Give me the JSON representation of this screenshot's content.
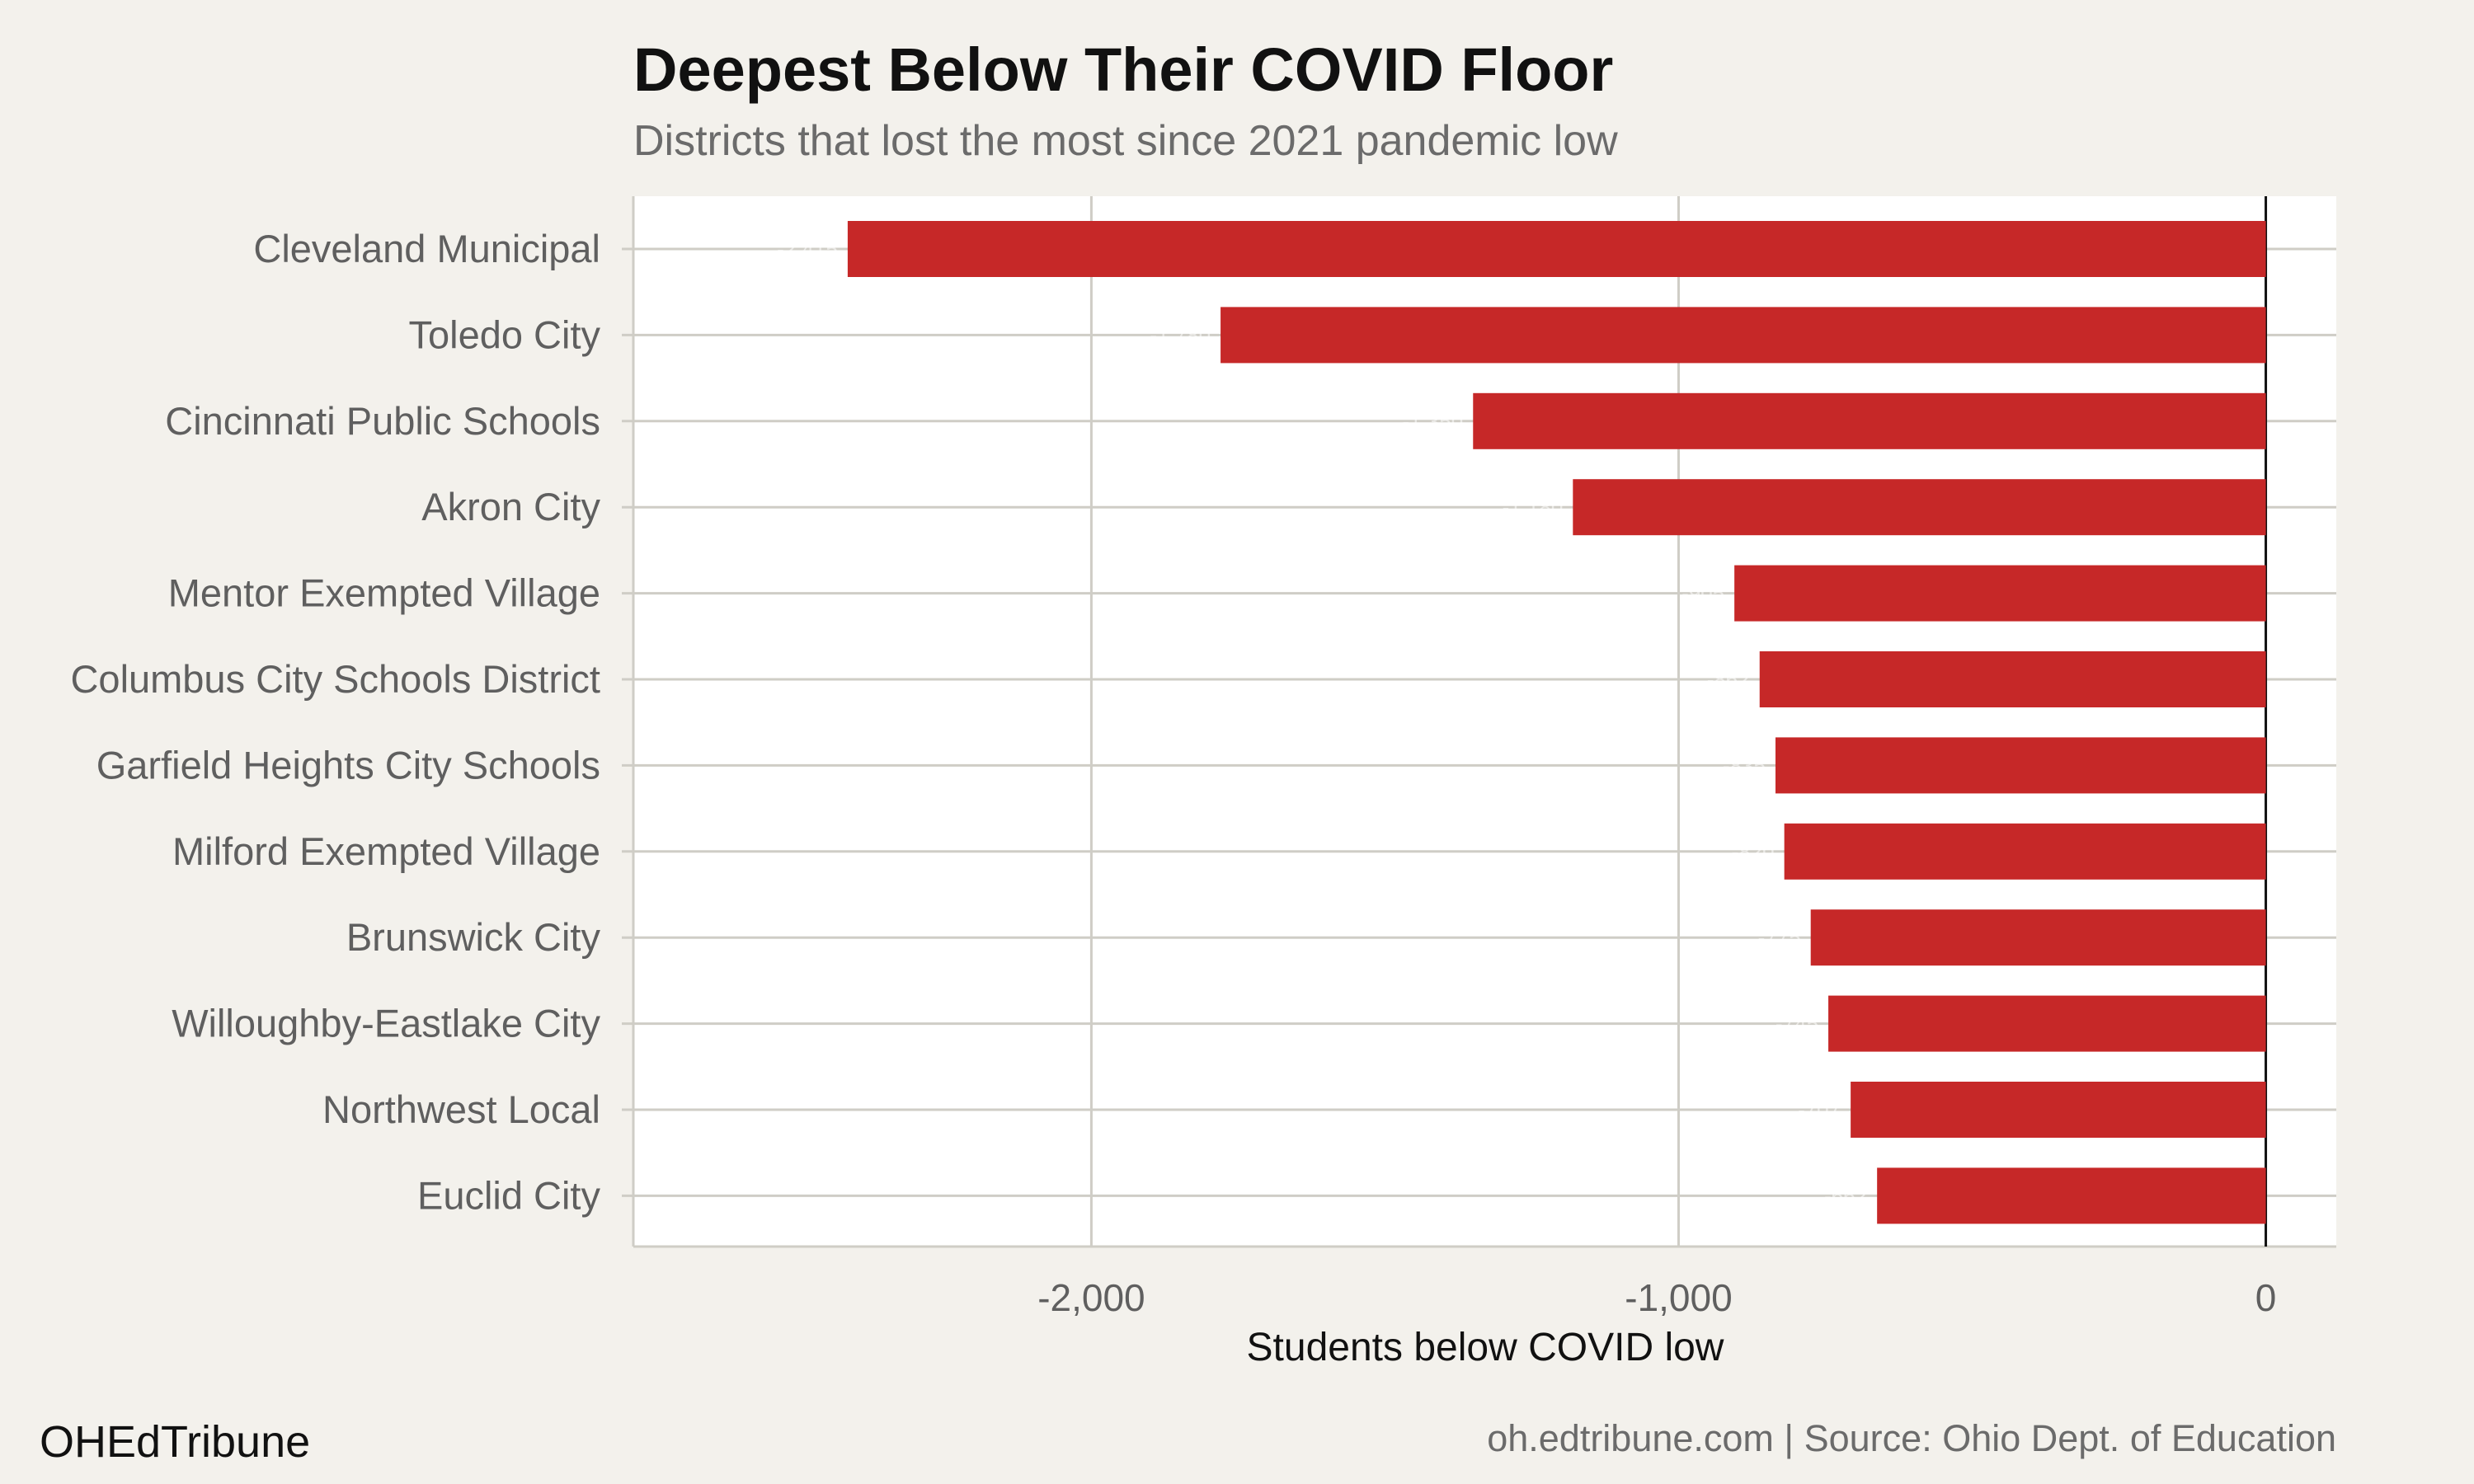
{
  "chart_data": {
    "type": "bar",
    "orientation": "horizontal",
    "title": "Deepest Below Their COVID Floor",
    "subtitle": "Districts that lost the most since 2021 pandemic low",
    "xlabel": "Students below COVID low",
    "ylabel": "",
    "categories": [
      "Cleveland Municipal",
      "Toledo City",
      "Cincinnati Public Schools",
      "Akron City",
      "Mentor Exempted Village",
      "Columbus City Schools District",
      "Garfield Heights City Schools",
      "Milford Exempted Village",
      "Brunswick City",
      "Willoughby-Eastlake City",
      "Northwest Local",
      "Euclid City"
    ],
    "values": [
      -2415,
      -1780,
      -1350,
      -1180,
      -905,
      -862,
      -835,
      -820,
      -775,
      -745,
      -707,
      -662
    ],
    "xlim": [
      -2780,
      120
    ],
    "xticks": [
      -2000,
      -1000,
      0
    ],
    "xtick_labels": [
      "-2,000",
      "-1,000",
      "0"
    ],
    "grid": true,
    "legend": "none",
    "colors": {
      "bar": "#c62828",
      "panel": "#ffffff",
      "background": "#f3f1ec",
      "grid": "#cfcdc6",
      "zero_line": "#111111"
    }
  },
  "footer": {
    "brand": "OHEdTribune",
    "source": "oh.edtribune.com | Source: Ohio Dept. of Education"
  }
}
